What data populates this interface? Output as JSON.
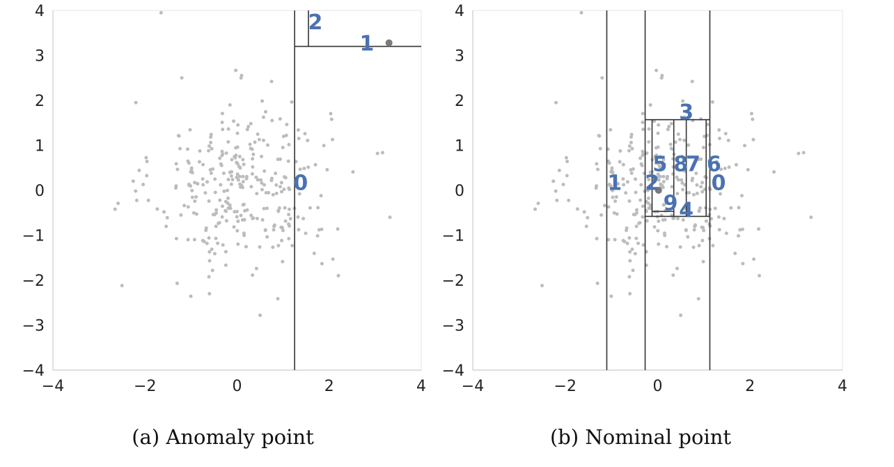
{
  "chart_data": [
    {
      "type": "scatter",
      "caption": "(a) Anomaly point",
      "xlim": [
        -4,
        4
      ],
      "ylim": [
        -4,
        4
      ],
      "xticks": [
        "−4",
        "−2",
        "0",
        "2",
        "4"
      ],
      "yticks": [
        "−4",
        "−3",
        "−2",
        "−1",
        "0",
        "1",
        "2",
        "3",
        "4"
      ],
      "grid": false,
      "highlight_point": {
        "x": 3.3,
        "y": 3.28
      },
      "split_lines": [
        {
          "orient": "v",
          "at": 1.25,
          "from": -4,
          "to": 4
        },
        {
          "orient": "h",
          "at": 3.2,
          "from": 1.25,
          "to": 4
        },
        {
          "orient": "v",
          "at": 1.55,
          "from": 3.2,
          "to": 4
        }
      ],
      "split_labels": [
        {
          "text": "0",
          "x": 1.38,
          "y": 0.18
        },
        {
          "text": "1",
          "x": 2.82,
          "y": 3.28
        },
        {
          "text": "2",
          "x": 1.7,
          "y": 3.75
        }
      ]
    },
    {
      "type": "scatter",
      "caption": "(b) Nominal point",
      "xlim": [
        -4,
        4
      ],
      "ylim": [
        -4,
        4
      ],
      "xticks": [
        "−4",
        "−2",
        "0",
        "2",
        "4"
      ],
      "yticks": [
        "−4",
        "−3",
        "−2",
        "−1",
        "0",
        "1",
        "2",
        "3",
        "4"
      ],
      "grid": false,
      "highlight_point": {
        "x": 0.02,
        "y": 0.0
      },
      "split_lines": [
        {
          "orient": "v",
          "at": -1.1,
          "from": -4,
          "to": 4
        },
        {
          "orient": "v",
          "at": -0.27,
          "from": -4,
          "to": 4
        },
        {
          "orient": "v",
          "at": 1.13,
          "from": -4,
          "to": 4
        },
        {
          "orient": "h",
          "at": 1.57,
          "from": -0.27,
          "to": 1.13
        },
        {
          "orient": "h",
          "at": -0.58,
          "from": -0.27,
          "to": 1.13
        },
        {
          "orient": "v",
          "at": -0.12,
          "from": -0.58,
          "to": 1.57
        },
        {
          "orient": "v",
          "at": 1.05,
          "from": -0.58,
          "to": 1.57
        },
        {
          "orient": "v",
          "at": 0.35,
          "from": -0.58,
          "to": 1.57
        },
        {
          "orient": "v",
          "at": 0.62,
          "from": -0.58,
          "to": 1.57
        },
        {
          "orient": "h",
          "at": -0.47,
          "from": -0.12,
          "to": 0.35
        }
      ],
      "split_labels": [
        {
          "text": "0",
          "x": 1.32,
          "y": 0.18
        },
        {
          "text": "1",
          "x": -0.93,
          "y": 0.18
        },
        {
          "text": "2",
          "x": -0.12,
          "y": 0.18
        },
        {
          "text": "3",
          "x": 0.62,
          "y": 1.75
        },
        {
          "text": "4",
          "x": 0.62,
          "y": -0.43
        },
        {
          "text": "5",
          "x": 0.05,
          "y": 0.6
        },
        {
          "text": "8",
          "x": 0.5,
          "y": 0.6
        },
        {
          "text": "7",
          "x": 0.77,
          "y": 0.6
        },
        {
          "text": "6",
          "x": 1.22,
          "y": 0.6
        },
        {
          "text": "9",
          "x": 0.28,
          "y": -0.27
        }
      ]
    }
  ],
  "colors": {
    "points": "#bcbcbc",
    "highlight": "#7a7a7a",
    "split_lines": "#333333",
    "labels": "#4a72b0",
    "axes": "#cccccc"
  }
}
